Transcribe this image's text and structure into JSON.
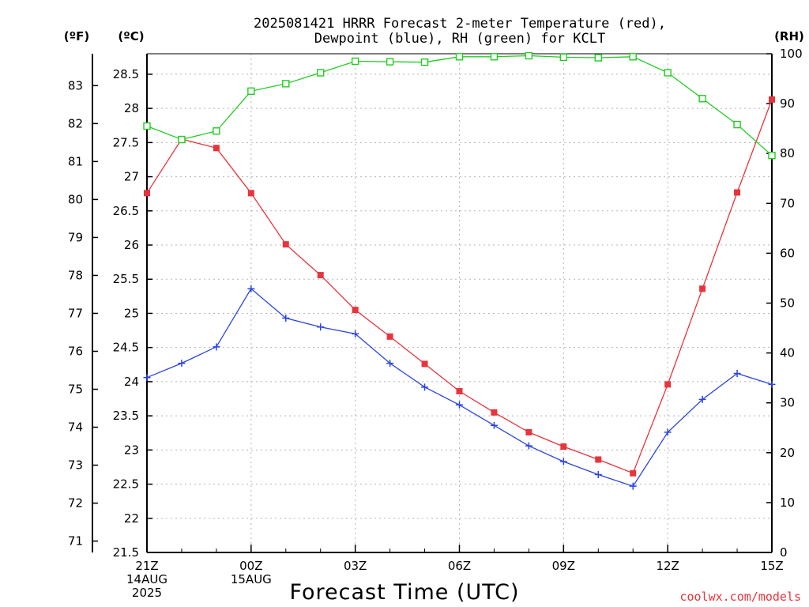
{
  "chart_data": {
    "type": "line",
    "title_lines": [
      "2025081421 HRRR Forecast 2-meter Temperature (red),",
      "Dewpoint (blue), RH (green) for KCLT"
    ],
    "xlabel": "Forecast Time (UTC)",
    "credit": "coolwx.com/models",
    "credit_color": "#e8343c",
    "units": {
      "fahrenheit": "(ºF)",
      "celsius": "(ºC)",
      "rh": "(RH)"
    },
    "x_hours": [
      0,
      1,
      2,
      3,
      4,
      5,
      6,
      7,
      8,
      9,
      10,
      11,
      12,
      13,
      14,
      15,
      16,
      17,
      18
    ],
    "x_ticks": [
      {
        "hour": 0,
        "lines": [
          "21Z",
          "14AUG",
          "2025"
        ]
      },
      {
        "hour": 3,
        "lines": [
          "00Z",
          "15AUG"
        ]
      },
      {
        "hour": 6,
        "lines": [
          "03Z"
        ]
      },
      {
        "hour": 9,
        "lines": [
          "06Z"
        ]
      },
      {
        "hour": 12,
        "lines": [
          "09Z"
        ]
      },
      {
        "hour": 15,
        "lines": [
          "12Z"
        ]
      },
      {
        "hour": 18,
        "lines": [
          "15Z"
        ]
      }
    ],
    "celsius_axis": {
      "min": 21.5,
      "max": 28.8,
      "ticks": [
        21.5,
        22,
        22.5,
        23,
        23.5,
        24,
        24.5,
        25,
        25.5,
        26,
        26.5,
        27,
        27.5,
        28,
        28.5
      ]
    },
    "fahrenheit_axis": {
      "ticks": [
        71,
        72,
        73,
        74,
        75,
        76,
        77,
        78,
        79,
        80,
        81,
        82,
        83
      ]
    },
    "rh_axis": {
      "min": 0,
      "max": 100,
      "ticks": [
        0,
        10,
        20,
        30,
        40,
        50,
        60,
        70,
        80,
        90,
        100
      ]
    },
    "series": [
      {
        "key": "temperature",
        "unit": "C",
        "color": "#e8343c",
        "marker": "filled-square",
        "values": [
          26.76,
          27.55,
          27.42,
          26.76,
          26.01,
          25.56,
          25.05,
          24.66,
          24.26,
          23.86,
          23.55,
          23.26,
          23.05,
          22.86,
          22.66,
          23.96,
          25.36,
          26.77,
          28.13
        ]
      },
      {
        "key": "dewpoint",
        "unit": "C",
        "color": "#2b44e6",
        "marker": "plus",
        "values": [
          24.06,
          24.27,
          24.51,
          25.36,
          24.93,
          24.8,
          24.7,
          24.27,
          23.92,
          23.66,
          23.36,
          23.06,
          22.83,
          22.64,
          22.47,
          23.26,
          23.74,
          24.12,
          23.96
        ]
      },
      {
        "key": "rh",
        "unit": "%",
        "color": "#22cc22",
        "marker": "open-square",
        "values": [
          85.5,
          82.8,
          84.5,
          92.5,
          94.0,
          96.2,
          98.5,
          98.4,
          98.3,
          99.4,
          99.4,
          99.6,
          99.3,
          99.2,
          99.4,
          96.2,
          91.0,
          85.8,
          79.6
        ]
      }
    ]
  }
}
